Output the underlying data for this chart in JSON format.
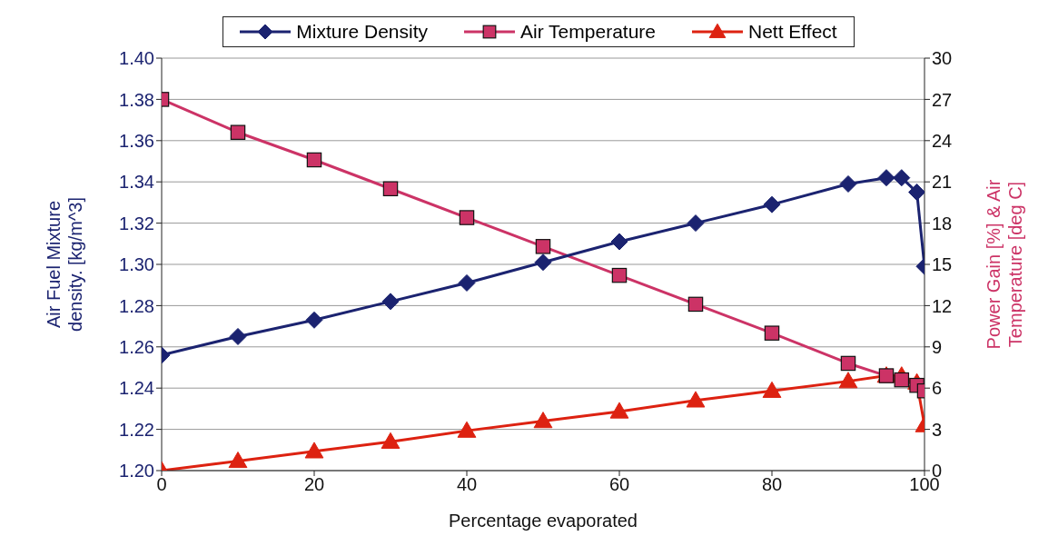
{
  "chart_data": {
    "type": "line",
    "xlabel": "Percentage evaporated",
    "ylabel": "Air Fuel Mixture density. [kg/m^3]",
    "y2label": "Power Gain [%] & Air Temperature [deg C]",
    "x": [
      0,
      10,
      20,
      30,
      40,
      50,
      60,
      70,
      80,
      90,
      95,
      97,
      99,
      100
    ],
    "series": [
      {
        "name": "Mixture Density",
        "color": "#1b2370",
        "marker": "diamond",
        "values": [
          1.256,
          1.265,
          1.273,
          1.282,
          1.291,
          1.301,
          1.311,
          1.32,
          1.329,
          1.339,
          1.342,
          1.342,
          1.335,
          1.299
        ]
      },
      {
        "name": "Air Temperature",
        "color": "#cc3366",
        "marker": "square",
        "axis": "y2",
        "values": [
          27.0,
          24.6,
          22.6,
          20.5,
          18.4,
          16.3,
          14.2,
          12.1,
          10.0,
          7.8,
          6.9,
          6.6,
          6.2,
          5.8
        ]
      },
      {
        "name": "Nett Effect",
        "color": "#dd2211",
        "marker": "triangle",
        "axis": "y2",
        "values": [
          0,
          0.7,
          1.4,
          2.1,
          2.9,
          3.6,
          4.3,
          5.1,
          5.8,
          6.5,
          6.9,
          6.9,
          6.4,
          3.3
        ]
      }
    ],
    "xlim": [
      0,
      100
    ],
    "xticks": [
      0,
      20,
      40,
      60,
      80,
      100
    ],
    "ylim": [
      1.2,
      1.4
    ],
    "yticks": [
      {
        "value": 1.2,
        "label": "1.20"
      },
      1.22,
      1.24,
      1.26,
      1.28,
      {
        "value": 1.3,
        "label": "1.30"
      },
      1.32,
      1.34,
      1.36,
      1.38,
      {
        "value": 1.4,
        "label": "1.40"
      }
    ],
    "y2lim": [
      0,
      30
    ],
    "y2ticks": [
      0,
      3,
      6,
      9,
      12,
      15,
      18,
      21,
      24,
      27,
      30
    ],
    "grid": "y",
    "legend": "top",
    "line_style": "solid"
  }
}
